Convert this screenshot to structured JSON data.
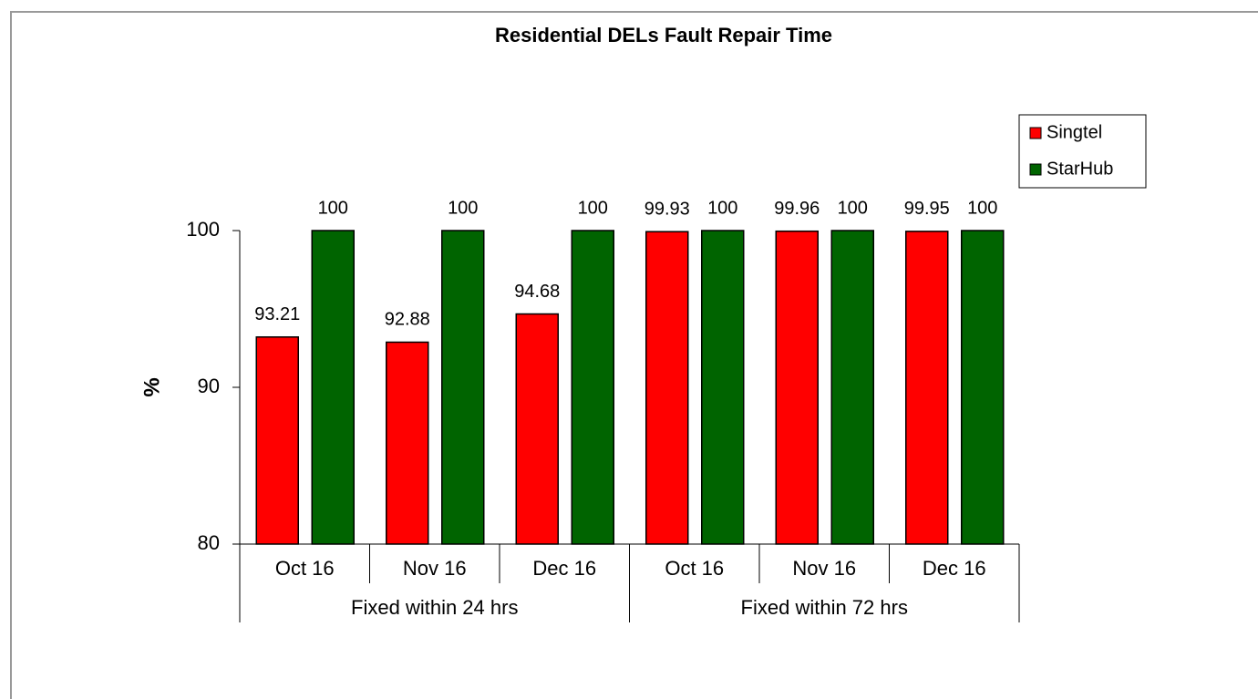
{
  "chart_data": {
    "type": "bar",
    "title": "Residential DELs Fault Repair Time",
    "y_label": "%",
    "groups": [
      {
        "label": "Fixed within 24 hrs",
        "categories": [
          "Oct 16",
          "Nov 16",
          "Dec 16"
        ]
      },
      {
        "label": "Fixed within 72 hrs",
        "categories": [
          "Oct 16",
          "Nov 16",
          "Dec 16"
        ]
      }
    ],
    "series": [
      {
        "name": "Singtel",
        "color": "#ff0000",
        "values": [
          93.21,
          92.88,
          94.68,
          99.93,
          99.96,
          99.95
        ]
      },
      {
        "name": "StarHub",
        "color": "#006400",
        "values": [
          100,
          100,
          100,
          100,
          100,
          100
        ]
      }
    ],
    "ylim": [
      80,
      100
    ],
    "yticks": [
      80,
      90,
      100
    ],
    "legend": "upper right"
  }
}
